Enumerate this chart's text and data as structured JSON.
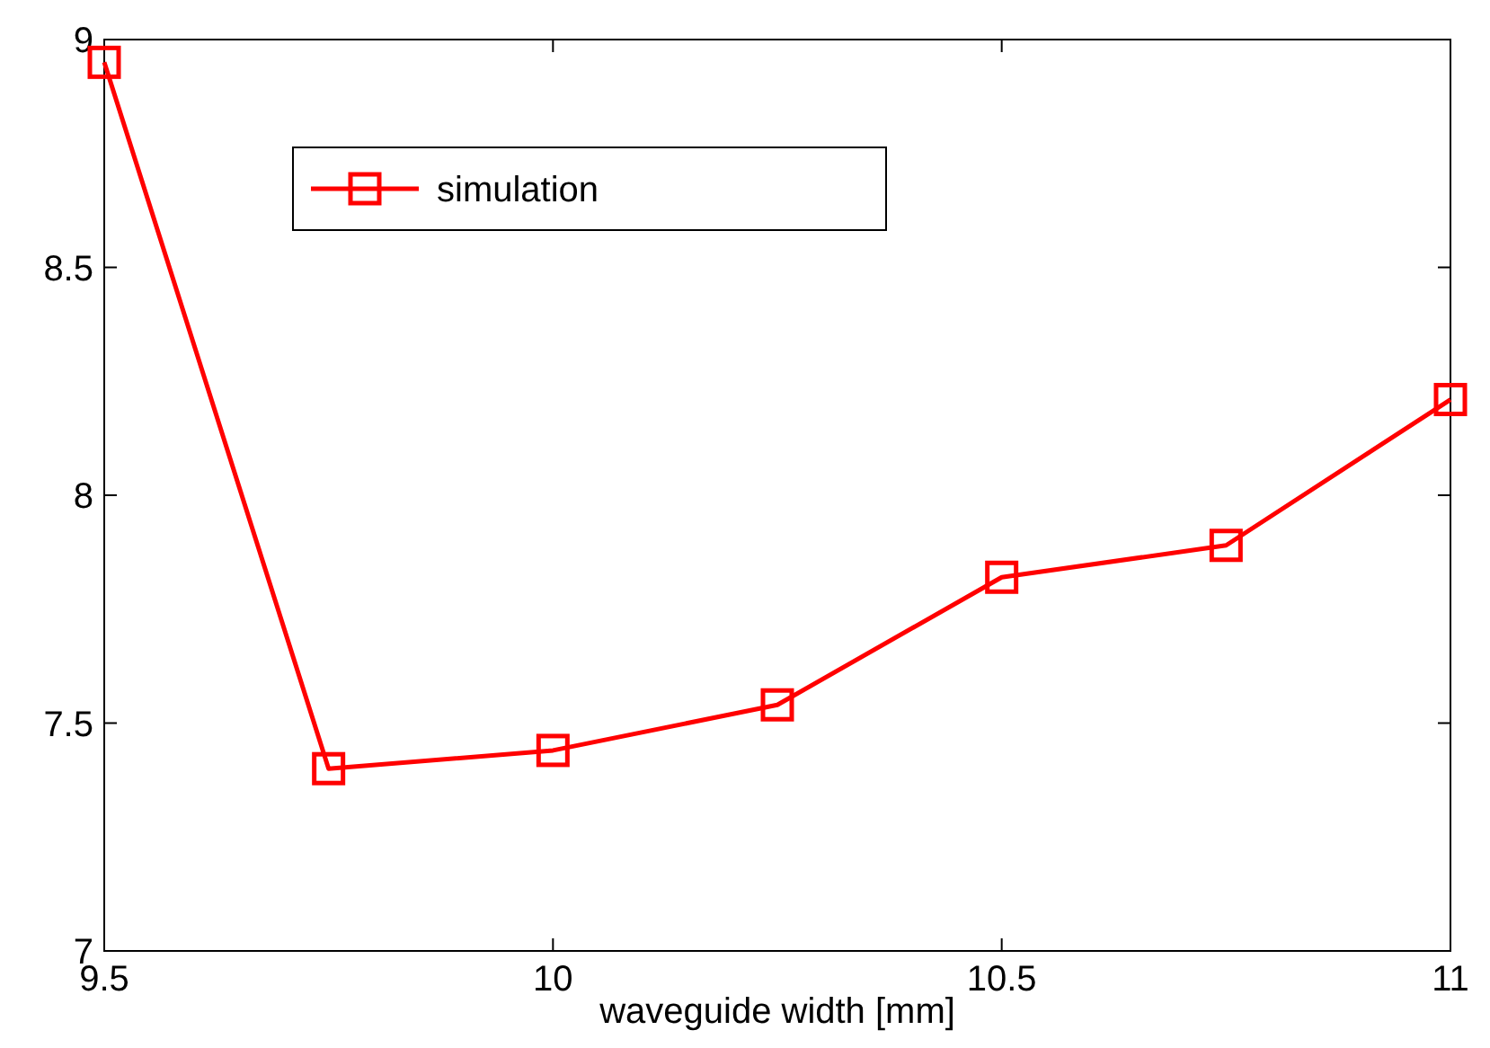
{
  "chart_data": {
    "type": "line",
    "xlabel": "waveguide width [mm]",
    "x": [
      9.5,
      9.75,
      10,
      10.25,
      10.5,
      10.75,
      11
    ],
    "series": [
      {
        "name": "simulation",
        "color": "#ff0000",
        "values": [
          8.95,
          7.4,
          7.44,
          7.54,
          7.82,
          7.89,
          8.21
        ]
      }
    ],
    "xlim": [
      9.5,
      11
    ],
    "xticks": [
      9.5,
      10,
      10.5,
      11
    ],
    "ylim": [
      7,
      9
    ],
    "yticks": [
      7,
      7.5,
      8,
      8.5,
      9
    ],
    "grid": false,
    "legend": "top left",
    "marker": "square",
    "line_style": "solid"
  }
}
